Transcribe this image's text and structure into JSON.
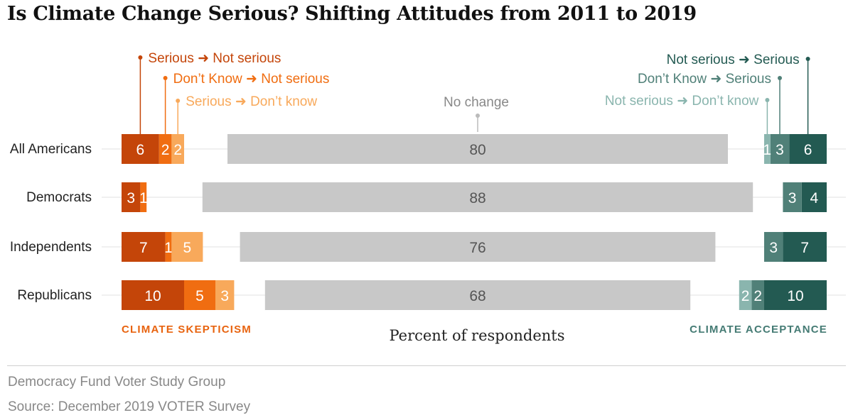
{
  "title": "Is Climate Change Serious? Shifting Attitudes from 2011 to 2019",
  "footer": {
    "org": "Democracy Fund Voter Study Group",
    "source": "Source: December 2019 VOTER Survey"
  },
  "colors": {
    "serious_to_not_serious": "#c44509",
    "dontknow_to_not_serious": "#f06d11",
    "serious_to_dontknow": "#f8a95b",
    "no_change": "#c8c8c8",
    "notserious_to_dontknow": "#8ab5ae",
    "dontknow_to_serious": "#508078",
    "notserious_to_serious": "#235a52",
    "skepticism_label": "#e8630f",
    "acceptance_label": "#457b74"
  },
  "chart_data": {
    "type": "bar",
    "stacked": true,
    "orientation": "horizontal",
    "title": "Is Climate Change Serious? Shifting Attitudes from 2011 to 2019",
    "xlabel": "Percent of respondents",
    "categories": [
      "All Americans",
      "Democrats",
      "Independents",
      "Republicans"
    ],
    "groups": {
      "left": "CLIMATE SKEPTICISM",
      "right": "CLIMATE ACCEPTANCE"
    },
    "center_label": "No change",
    "series": [
      {
        "name": "Serious ➜ Not serious",
        "group": "left",
        "values": [
          6,
          3,
          7,
          10
        ]
      },
      {
        "name": "Don’t Know ➜ Not serious",
        "group": "left",
        "values": [
          2,
          1,
          1,
          5
        ]
      },
      {
        "name": "Serious ➜ Don’t know",
        "group": "left",
        "values": [
          2,
          0,
          5,
          3
        ]
      },
      {
        "name": "No change",
        "group": "center",
        "values": [
          80,
          88,
          76,
          68
        ]
      },
      {
        "name": "Not serious ➜ Don’t know",
        "group": "right",
        "values": [
          1,
          0,
          0,
          2
        ]
      },
      {
        "name": "Don’t Know ➜ Serious",
        "group": "right",
        "values": [
          3,
          3,
          3,
          2
        ]
      },
      {
        "name": "Not serious ➜ Serious",
        "group": "right",
        "values": [
          6,
          4,
          7,
          10
        ]
      }
    ]
  }
}
